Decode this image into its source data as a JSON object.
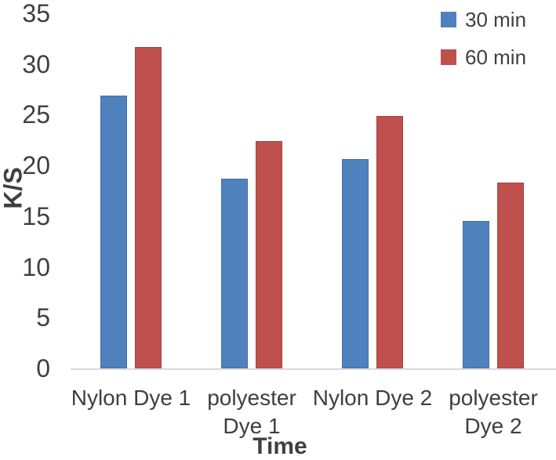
{
  "chart_data": {
    "type": "bar",
    "title": "",
    "categories": [
      "Nylon Dye 1",
      "polyester\nDye 1",
      "Nylon Dye 2",
      "polyester\nDye 2"
    ],
    "series": [
      {
        "name": "30 min",
        "color": "#4F81BD",
        "values": [
          26.9,
          18.7,
          20.6,
          14.5
        ]
      },
      {
        "name": "60 min",
        "color": "#C0504D",
        "values": [
          31.7,
          22.4,
          24.9,
          18.3
        ]
      }
    ],
    "xlabel": "Time",
    "ylabel": "K/S",
    "ylim": [
      0,
      35
    ],
    "yticks": [
      0,
      5,
      10,
      15,
      20,
      25,
      30,
      35
    ],
    "grid": false,
    "legend_position": "top-right",
    "axis_line_color": "#D9D9D9",
    "text_color": "#3F3F3F"
  }
}
